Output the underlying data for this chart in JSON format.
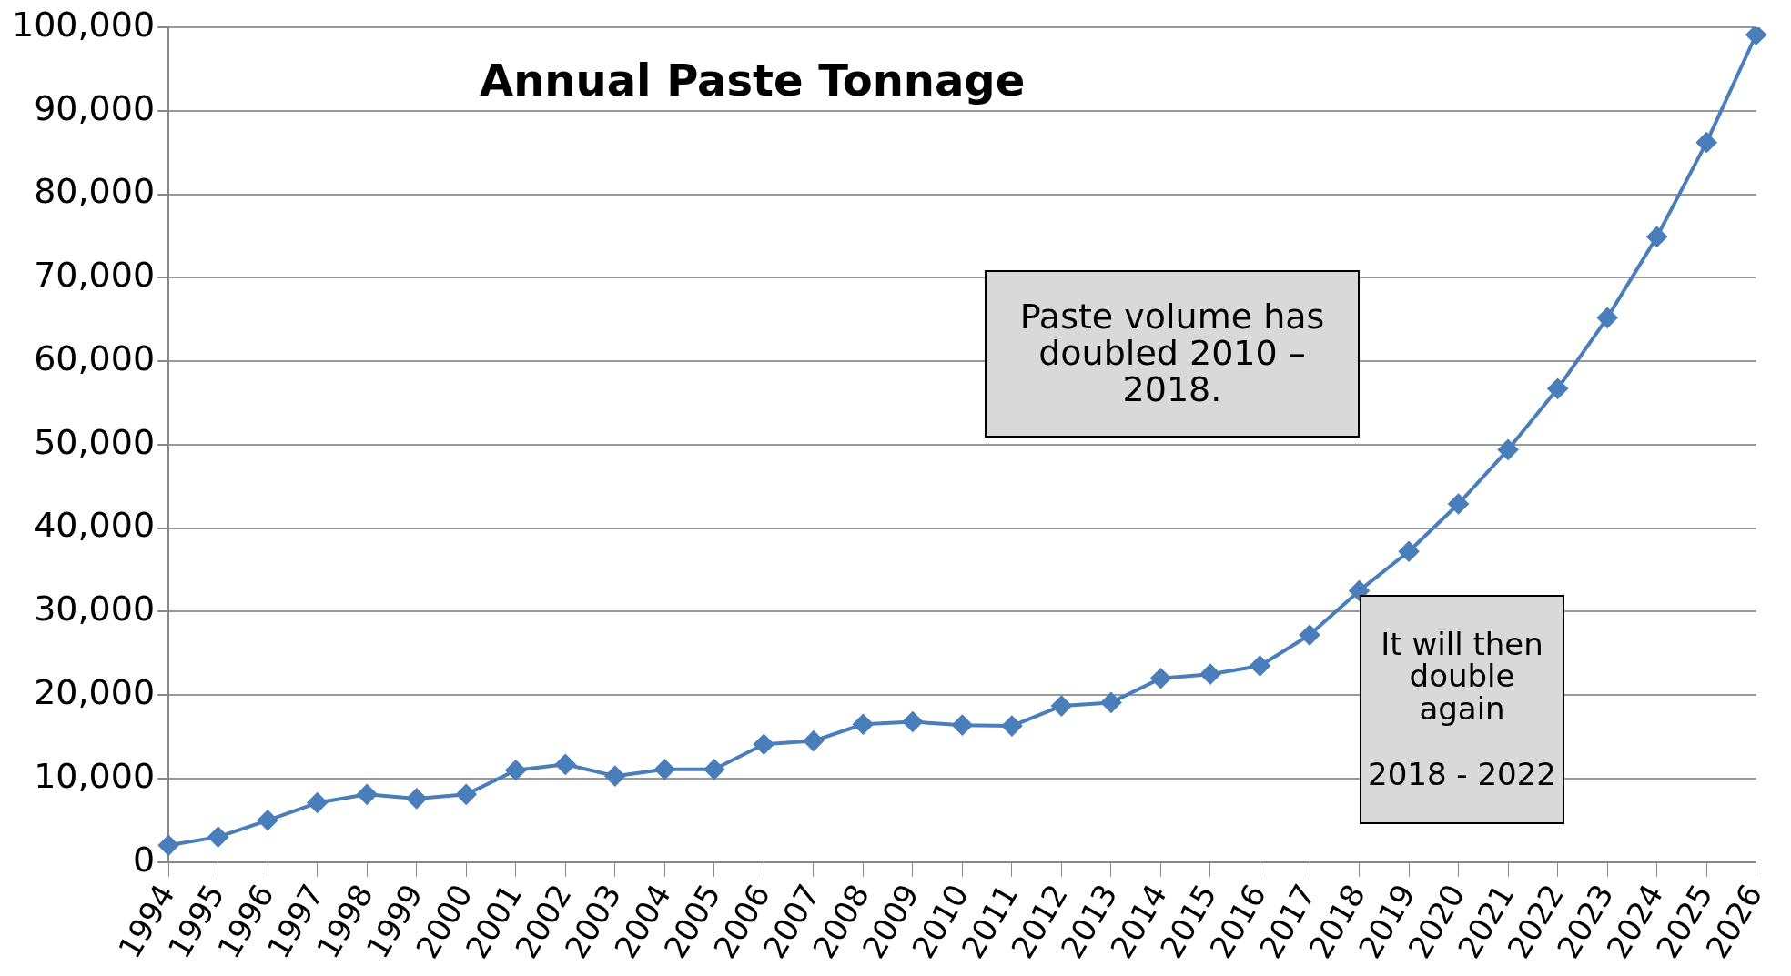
{
  "chart_data": {
    "type": "line",
    "title": "Annual Paste Tonnage",
    "categories": [
      "1994",
      "1995",
      "1996",
      "1997",
      "1998",
      "1999",
      "2000",
      "2001",
      "2002",
      "2003",
      "2004",
      "2005",
      "2006",
      "2007",
      "2008",
      "2009",
      "2010",
      "2011",
      "2012",
      "2013",
      "2014",
      "2015",
      "2016",
      "2017",
      "2018",
      "2019",
      "2020",
      "2021",
      "2022",
      "2023",
      "2024",
      "2025",
      "2026"
    ],
    "series": [
      {
        "color": "#4a7ebb",
        "values": [
          2000,
          3000,
          5000,
          7100,
          8100,
          7600,
          8100,
          11000,
          11700,
          10300,
          11100,
          11100,
          14100,
          14500,
          16500,
          16800,
          16400,
          16300,
          18700,
          19100,
          22000,
          22500,
          23500,
          27200,
          32500,
          37200,
          42900,
          49400,
          56700,
          65200,
          74900,
          86200,
          99100
        ]
      }
    ],
    "ylim": [
      0,
      100000
    ],
    "yticks": [
      {
        "value": 0,
        "label": "0"
      },
      {
        "value": 10000,
        "label": "10,000"
      },
      {
        "value": 20000,
        "label": "20,000"
      },
      {
        "value": 30000,
        "label": "30,000"
      },
      {
        "value": 40000,
        "label": "40,000"
      },
      {
        "value": 50000,
        "label": "50,000"
      },
      {
        "value": 60000,
        "label": "60,000"
      },
      {
        "value": 70000,
        "label": "70,000"
      },
      {
        "value": 80000,
        "label": "80,000"
      },
      {
        "value": 90000,
        "label": "90,000"
      },
      {
        "value": 100000,
        "label": "100,000"
      }
    ],
    "grid": "y",
    "legend": false,
    "marker": "diamond",
    "line_style": "solid",
    "annotations": [
      "Paste volume has doubled  2010 – 2018.",
      "It will then double again\n\n2018 - 2022"
    ]
  }
}
